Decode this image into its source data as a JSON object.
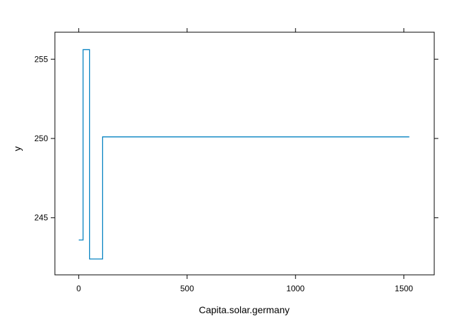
{
  "chart_data": {
    "type": "line",
    "title": "",
    "xlabel": "Capita.solar.germany",
    "ylabel": "y",
    "xlim": [
      -110,
      1640
    ],
    "ylim": [
      241.4,
      256.7
    ],
    "grid": false,
    "legend": "none",
    "x_ticks": [
      0,
      500,
      1000,
      1500
    ],
    "y_ticks": [
      245,
      250,
      255
    ],
    "series": [
      {
        "color": "#0080c0",
        "step": true,
        "x": [
          0,
          20,
          50,
          75,
          110,
          1525
        ],
        "y": [
          243.6,
          255.6,
          242.4,
          242.4,
          250.1,
          250.1
        ]
      }
    ]
  }
}
